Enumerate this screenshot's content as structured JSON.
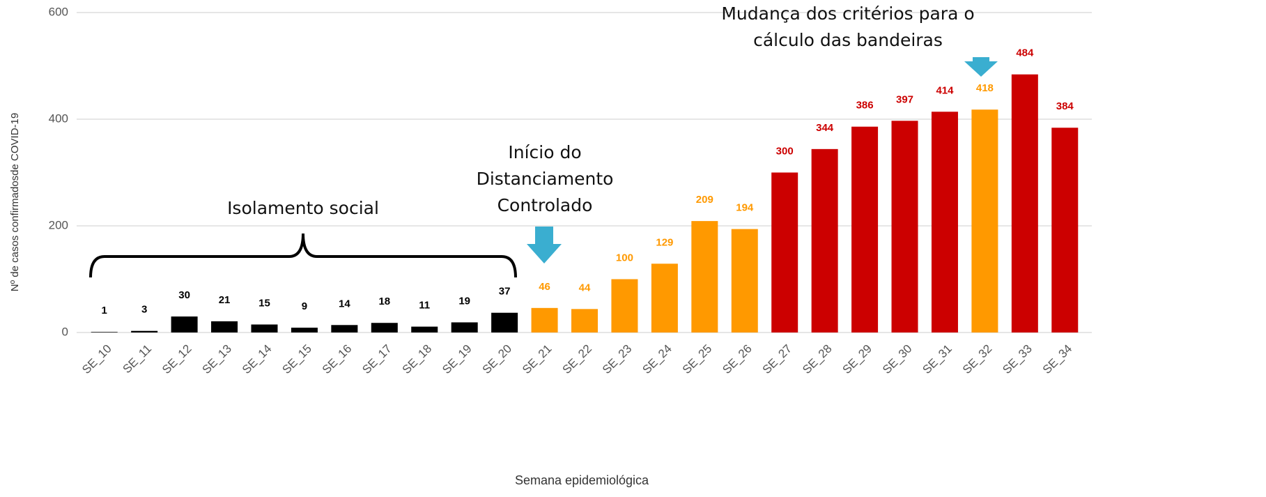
{
  "chart_data": {
    "type": "bar",
    "x_label": "Semana epidemiológica",
    "y_label": "Nº de casos confirmadosde COVID-19",
    "categories": [
      "SE_10",
      "SE_11",
      "SE_12",
      "SE_13",
      "SE_14",
      "SE_15",
      "SE_16",
      "SE_17",
      "SE_18",
      "SE_19",
      "SE_20",
      "SE_21",
      "SE_22",
      "SE_23",
      "SE_24",
      "SE_25",
      "SE_26",
      "SE_27",
      "SE_28",
      "SE_29",
      "SE_30",
      "SE_31",
      "SE_32",
      "SE_33",
      "SE_34"
    ],
    "values": [
      1,
      3,
      30,
      21,
      15,
      9,
      14,
      18,
      11,
      19,
      37,
      46,
      44,
      100,
      129,
      209,
      194,
      300,
      344,
      386,
      397,
      414,
      418,
      484,
      384
    ],
    "colors": [
      "#000000",
      "#000000",
      "#000000",
      "#000000",
      "#000000",
      "#000000",
      "#000000",
      "#000000",
      "#000000",
      "#000000",
      "#000000",
      "#ff9900",
      "#ff9900",
      "#ff9900",
      "#ff9900",
      "#ff9900",
      "#ff9900",
      "#cc0000",
      "#cc0000",
      "#cc0000",
      "#cc0000",
      "#cc0000",
      "#ff9900",
      "#cc0000",
      "#cc0000"
    ],
    "ylim": [
      0,
      600
    ],
    "yticks": [
      0,
      200,
      400,
      600
    ],
    "grid": true,
    "annotations": [
      {
        "lines": [
          "Isolamento social"
        ]
      },
      {
        "lines": [
          "Início do",
          "Distanciamento",
          "Controlado"
        ]
      },
      {
        "lines": [
          "Mudança dos critérios para o",
          "cálculo das bandeiras"
        ]
      }
    ]
  }
}
